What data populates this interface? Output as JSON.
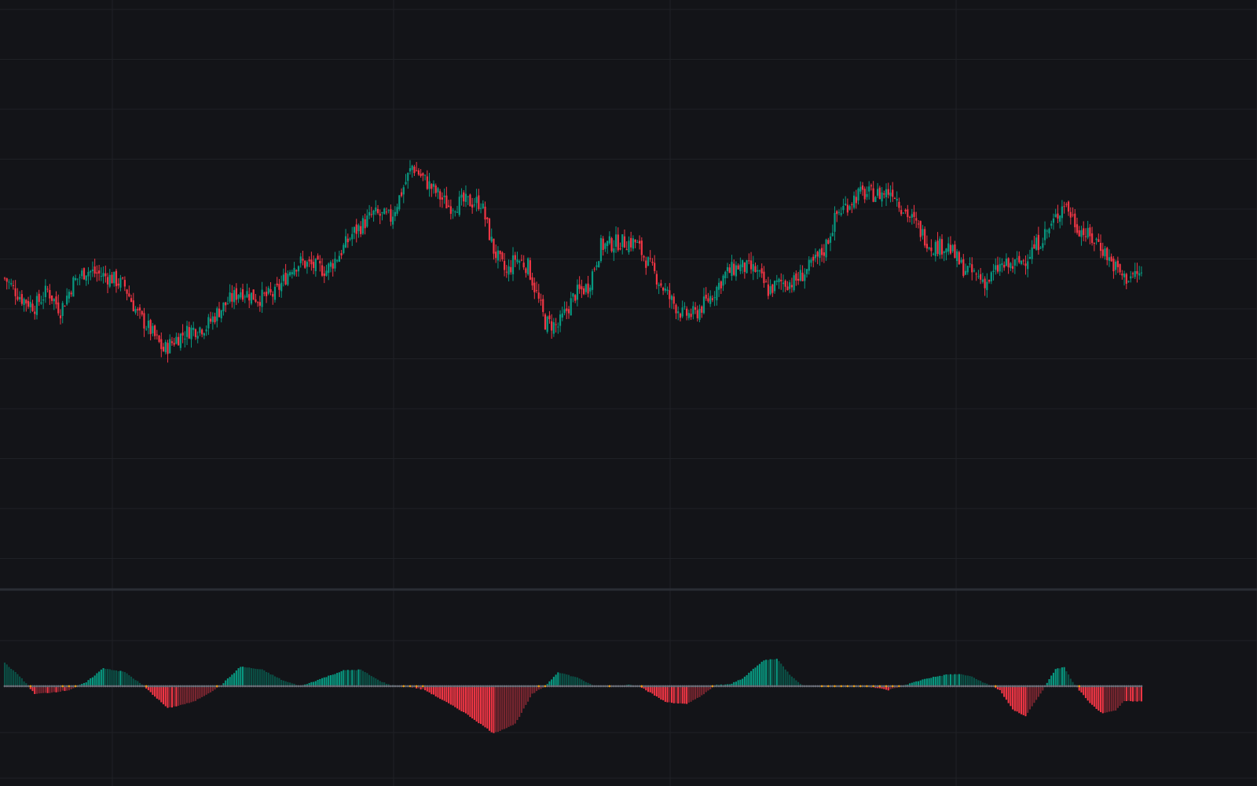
{
  "chart_data": [
    {
      "type": "candlestick",
      "title": "",
      "xlabel": "",
      "ylabel": "",
      "grid": true,
      "ylim": [
        0,
        100
      ],
      "colors": {
        "up": "#089981",
        "down": "#f23645",
        "background": "#131418",
        "grid": "#1f2126"
      },
      "close_anchors": [
        [
          0,
          60
        ],
        [
          8,
          55
        ],
        [
          14,
          53
        ],
        [
          20,
          57
        ],
        [
          26,
          52
        ],
        [
          32,
          59
        ],
        [
          38,
          62
        ],
        [
          44,
          61
        ],
        [
          50,
          60
        ],
        [
          56,
          58
        ],
        [
          62,
          51
        ],
        [
          68,
          47
        ],
        [
          74,
          42
        ],
        [
          80,
          45
        ],
        [
          86,
          47
        ],
        [
          94,
          48
        ],
        [
          100,
          52
        ],
        [
          110,
          57
        ],
        [
          118,
          55
        ],
        [
          126,
          56
        ],
        [
          134,
          63
        ],
        [
          138,
          64
        ],
        [
          144,
          63
        ],
        [
          150,
          62
        ],
        [
          156,
          66
        ],
        [
          162,
          71
        ],
        [
          172,
          76
        ],
        [
          180,
          75
        ],
        [
          190,
          88
        ],
        [
          200,
          82
        ],
        [
          207,
          78
        ],
        [
          214,
          79
        ],
        [
          222,
          79
        ],
        [
          228,
          67
        ],
        [
          234,
          61
        ],
        [
          238,
          65
        ],
        [
          244,
          63
        ],
        [
          252,
          49
        ],
        [
          258,
          48
        ],
        [
          266,
          56
        ],
        [
          272,
          58
        ],
        [
          278,
          68
        ],
        [
          286,
          69
        ],
        [
          294,
          69
        ],
        [
          302,
          62
        ],
        [
          310,
          55
        ],
        [
          316,
          51
        ],
        [
          322,
          51
        ],
        [
          330,
          56
        ],
        [
          336,
          61
        ],
        [
          342,
          63
        ],
        [
          350,
          62
        ],
        [
          356,
          57
        ],
        [
          362,
          59
        ],
        [
          368,
          59
        ],
        [
          376,
          63
        ],
        [
          382,
          67
        ],
        [
          388,
          76
        ],
        [
          398,
          81
        ],
        [
          408,
          81
        ],
        [
          414,
          82
        ],
        [
          418,
          78
        ],
        [
          424,
          74
        ],
        [
          432,
          68
        ],
        [
          440,
          68
        ],
        [
          446,
          63
        ],
        [
          452,
          61
        ],
        [
          458,
          59
        ],
        [
          464,
          63
        ],
        [
          470,
          63
        ],
        [
          476,
          65
        ],
        [
          482,
          69
        ],
        [
          488,
          73
        ],
        [
          494,
          79
        ],
        [
          500,
          73
        ],
        [
          506,
          70
        ],
        [
          510,
          69
        ],
        [
          516,
          64
        ],
        [
          522,
          60
        ],
        [
          528,
          61
        ]
      ],
      "bars": 531
    },
    {
      "type": "histogram",
      "title": "",
      "xlabel": "",
      "ylabel": "",
      "grid": true,
      "ylim": [
        -1,
        1
      ],
      "colors": {
        "up_rising": "#089981",
        "up_falling": "#0b5046",
        "down_falling": "#f23645",
        "down_rising": "#7a2630",
        "zero_dots_neutral": "#6b6e78",
        "zero_dots_highlight": "#e39a1f"
      },
      "value_anchors": [
        [
          0,
          0.3
        ],
        [
          8,
          0.1
        ],
        [
          14,
          -0.1
        ],
        [
          22,
          -0.08
        ],
        [
          30,
          -0.05
        ],
        [
          38,
          0.05
        ],
        [
          46,
          0.23
        ],
        [
          56,
          0.18
        ],
        [
          64,
          0.02
        ],
        [
          76,
          -0.28
        ],
        [
          88,
          -0.2
        ],
        [
          100,
          -0.01
        ],
        [
          110,
          0.25
        ],
        [
          120,
          0.21
        ],
        [
          130,
          0.07
        ],
        [
          138,
          0.0
        ],
        [
          150,
          0.12
        ],
        [
          158,
          0.2
        ],
        [
          166,
          0.21
        ],
        [
          174,
          0.08
        ],
        [
          180,
          0.01
        ],
        [
          188,
          0.0
        ],
        [
          196,
          -0.05
        ],
        [
          214,
          -0.33
        ],
        [
          228,
          -0.6
        ],
        [
          238,
          -0.48
        ],
        [
          246,
          -0.1
        ],
        [
          252,
          0.0
        ],
        [
          258,
          0.18
        ],
        [
          268,
          0.1
        ],
        [
          274,
          0.01
        ],
        [
          286,
          0.0
        ],
        [
          292,
          0.02
        ],
        [
          296,
          0.0
        ],
        [
          308,
          -0.2
        ],
        [
          318,
          -0.23
        ],
        [
          326,
          -0.1
        ],
        [
          332,
          0.02
        ],
        [
          338,
          0.02
        ],
        [
          344,
          0.1
        ],
        [
          354,
          0.33
        ],
        [
          360,
          0.35
        ],
        [
          366,
          0.15
        ],
        [
          372,
          0.01
        ],
        [
          390,
          -0.01
        ],
        [
          394,
          0.0
        ],
        [
          402,
          0.0
        ],
        [
          412,
          -0.05
        ],
        [
          430,
          0.1
        ],
        [
          440,
          0.15
        ],
        [
          446,
          0.15
        ],
        [
          450,
          0.13
        ],
        [
          464,
          -0.05
        ],
        [
          470,
          -0.3
        ],
        [
          476,
          -0.38
        ],
        [
          484,
          -0.05
        ],
        [
          490,
          0.22
        ],
        [
          494,
          0.24
        ],
        [
          498,
          0.05
        ],
        [
          506,
          -0.22
        ],
        [
          512,
          -0.35
        ],
        [
          518,
          -0.31
        ],
        [
          522,
          -0.19
        ],
        [
          528,
          -0.19
        ]
      ],
      "bars": 531
    }
  ]
}
